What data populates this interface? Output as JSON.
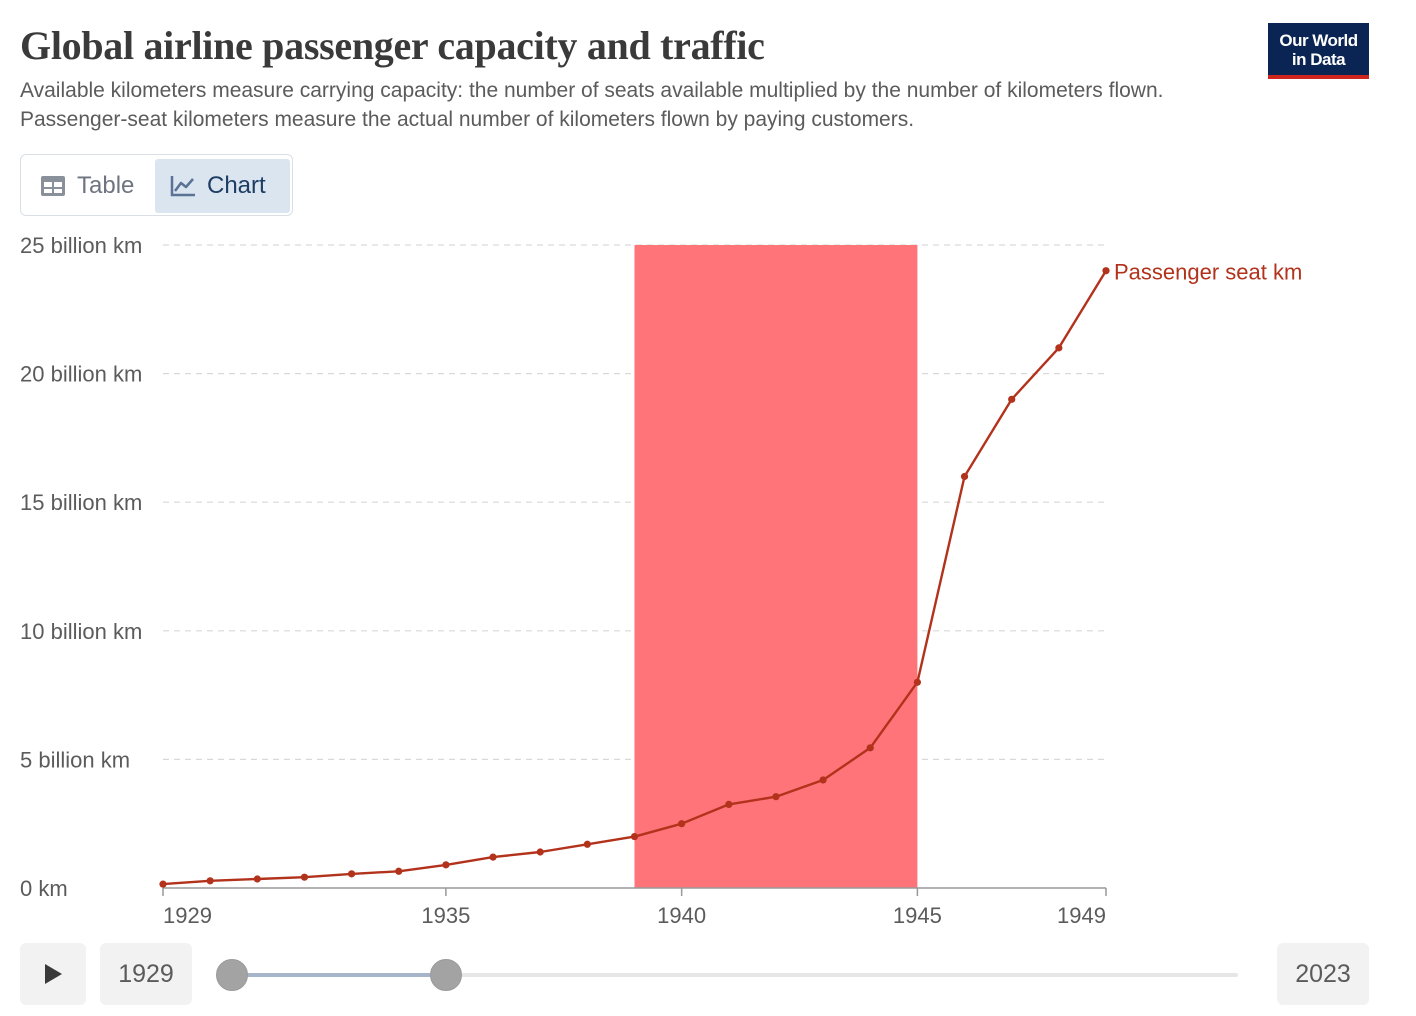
{
  "header": {
    "title": "Global airline passenger capacity and traffic",
    "subtitle": "Available kilometers measure carrying capacity: the number of seats available multiplied by the number of kilometers flown. Passenger-seat kilometers measure the actual number of kilometers flown by paying customers.",
    "logo_line1": "Our World",
    "logo_line2": "in Data"
  },
  "tabs": [
    {
      "label": "Table",
      "icon": "table-icon",
      "active": false
    },
    {
      "label": "Chart",
      "icon": "line-chart-icon",
      "active": true
    }
  ],
  "timeline": {
    "start_year": "1929",
    "end_year": "2023",
    "play_icon": "play-icon"
  },
  "colors": {
    "series": "#b2321c",
    "highlight": "#ff7479",
    "grid": "#d9d9d9",
    "logo_bg": "#0a2553",
    "logo_accent": "#ce261e"
  },
  "chart_data": {
    "type": "line",
    "title": "Global airline passenger capacity and traffic",
    "xlabel": "",
    "ylabel": "",
    "xlim": [
      1929,
      1949
    ],
    "ylim": [
      0,
      25
    ],
    "y_ticks": [
      {
        "value": 0,
        "label": "0 km"
      },
      {
        "value": 5,
        "label": "5 billion km"
      },
      {
        "value": 10,
        "label": "10 billion km"
      },
      {
        "value": 15,
        "label": "15 billion km"
      },
      {
        "value": 20,
        "label": "20 billion km"
      },
      {
        "value": 25,
        "label": "25 billion km"
      }
    ],
    "x_ticks": [
      1929,
      1935,
      1940,
      1945,
      1949
    ],
    "grid": "horizontal-dashed",
    "highlight_band": {
      "x_start": 1939,
      "x_end": 1945
    },
    "series": [
      {
        "name": "Passenger seat km",
        "x": [
          1929,
          1930,
          1931,
          1932,
          1933,
          1934,
          1935,
          1936,
          1937,
          1938,
          1939,
          1940,
          1941,
          1942,
          1943,
          1944,
          1945,
          1946,
          1947,
          1948,
          1949
        ],
        "values": [
          0.15,
          0.28,
          0.35,
          0.42,
          0.55,
          0.65,
          0.9,
          1.2,
          1.4,
          1.7,
          2.0,
          2.5,
          3.25,
          3.55,
          4.2,
          5.45,
          8.0,
          16.0,
          19.0,
          21.0,
          24.0
        ]
      }
    ]
  }
}
